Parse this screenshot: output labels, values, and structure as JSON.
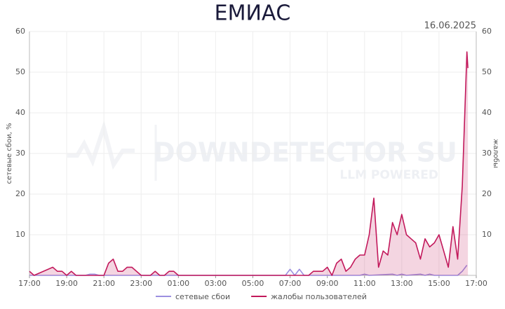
{
  "chart_data": {
    "type": "area",
    "title": "ЕМИАС",
    "date": "16.06.2025",
    "ylabel": "сетевые сбои, %",
    "y2label": "жалобы",
    "watermark": {
      "text": "DOWNDETECTOR SU",
      "subtext": "LLM POWERED"
    },
    "grid": true,
    "legend": "bottom",
    "xlim": [
      0,
      24
    ],
    "xticks": [
      {
        "value": 0,
        "label": "17:00"
      },
      {
        "value": 2,
        "label": "19:00"
      },
      {
        "value": 4,
        "label": "21:00"
      },
      {
        "value": 6,
        "label": "23:00"
      },
      {
        "value": 8,
        "label": "01:00"
      },
      {
        "value": 10,
        "label": "03:00"
      },
      {
        "value": 12,
        "label": "05:00"
      },
      {
        "value": 14,
        "label": "07:00"
      },
      {
        "value": 16,
        "label": "09:00"
      },
      {
        "value": 18,
        "label": "11:00"
      },
      {
        "value": 20,
        "label": "13:00"
      },
      {
        "value": 22,
        "label": "15:00"
      },
      {
        "value": 24,
        "label": "17:00"
      }
    ],
    "ylim": [
      0,
      60
    ],
    "yticks": [
      10,
      20,
      30,
      40,
      50,
      60
    ],
    "y2lim": [
      0,
      60
    ],
    "y2ticks": [
      10,
      20,
      30,
      40,
      50,
      60
    ],
    "series": [
      {
        "name": "сетевые сбои",
        "color": "#9c8fe0",
        "fill": false,
        "x": [
          0,
          3,
          3.25,
          3.5,
          3.75,
          13.75,
          14,
          14.25,
          14.5,
          14.75,
          17.75,
          18,
          18.25,
          19.5,
          19.75,
          20,
          20.25,
          21,
          21.25,
          21.5,
          21.75,
          23,
          23.25,
          23.5
        ],
        "values": [
          0,
          0,
          0.3,
          0.3,
          0,
          0,
          1.5,
          0,
          1.5,
          0,
          0,
          0.3,
          0,
          0.3,
          0,
          0.3,
          0,
          0.3,
          0,
          0.3,
          0,
          0,
          1,
          2.5
        ]
      },
      {
        "name": "жалобы пользователей",
        "color": "#c2185b",
        "fill": true,
        "axis": "y2",
        "x": [
          0,
          0.25,
          1.25,
          1.5,
          1.75,
          2,
          2.25,
          2.5,
          4,
          4.25,
          4.5,
          4.75,
          5,
          5.25,
          5.5,
          6,
          6.5,
          6.75,
          7,
          7.25,
          7.5,
          7.75,
          8,
          15,
          15.25,
          15.75,
          16,
          16.25,
          16.5,
          16.75,
          17,
          17.25,
          17.5,
          17.75,
          18,
          18.25,
          18.5,
          18.75,
          19,
          19.25,
          19.5,
          19.75,
          20,
          20.25,
          20.5,
          20.75,
          21,
          21.25,
          21.5,
          21.75,
          22,
          22.25,
          22.5,
          22.75,
          23,
          23.25,
          23.5,
          23.55
        ],
        "values": [
          1,
          0,
          2,
          1,
          1,
          0,
          1,
          0,
          0,
          3,
          4,
          1,
          1,
          2,
          2,
          0,
          0,
          1,
          0,
          0,
          1,
          1,
          0,
          0,
          1,
          1,
          2,
          0,
          3,
          4,
          1,
          2,
          4,
          5,
          5,
          10,
          19,
          2,
          6,
          5,
          13,
          10,
          15,
          10,
          9,
          8,
          4,
          9,
          7,
          8,
          10,
          6,
          2,
          12,
          4,
          22,
          55,
          51
        ]
      }
    ]
  }
}
